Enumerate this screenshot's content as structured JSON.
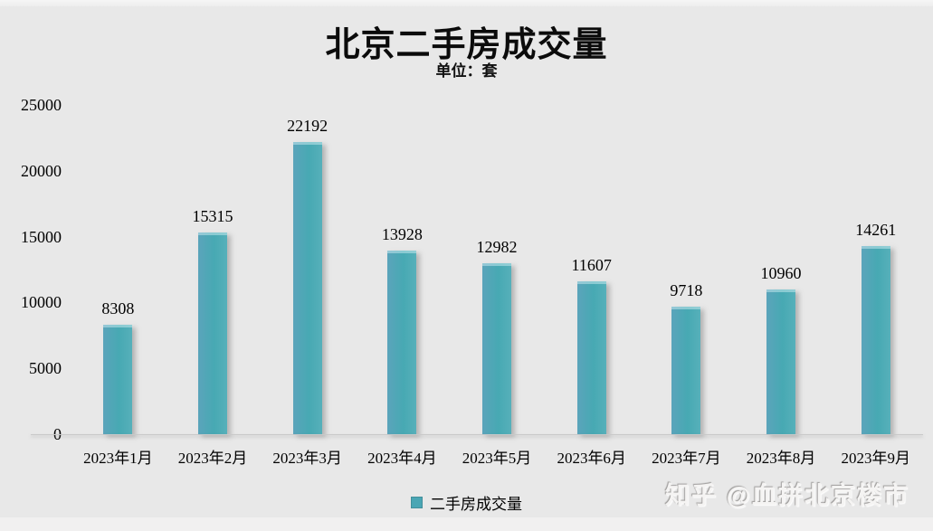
{
  "chart_data": {
    "type": "bar",
    "title": "北京二手房成交量",
    "subtitle": "单位：套",
    "categories": [
      "2023年1月",
      "2023年2月",
      "2023年3月",
      "2023年4月",
      "2023年5月",
      "2023年6月",
      "2023年7月",
      "2023年8月",
      "2023年9月"
    ],
    "series": [
      {
        "name": "二手房成交量",
        "values": [
          8308,
          15315,
          22192,
          13928,
          12982,
          11607,
          9718,
          10960,
          14261
        ]
      }
    ],
    "ylim": [
      0,
      25000
    ],
    "y_ticks": [
      0,
      5000,
      10000,
      15000,
      20000,
      25000
    ],
    "grid": false,
    "legend_position": "bottom",
    "data_labels": true
  },
  "watermark": "知乎 @血拼北京楼市",
  "colors": {
    "background": "#e8e8e8",
    "bar": "#4aa6b4",
    "bar_gradient_left": "#5ba4bb",
    "bar_gradient_right": "#47a9b3",
    "bar_gradient_edge": "#57b0ba",
    "axis_line": "#c9c9c9",
    "text": "#000000"
  }
}
